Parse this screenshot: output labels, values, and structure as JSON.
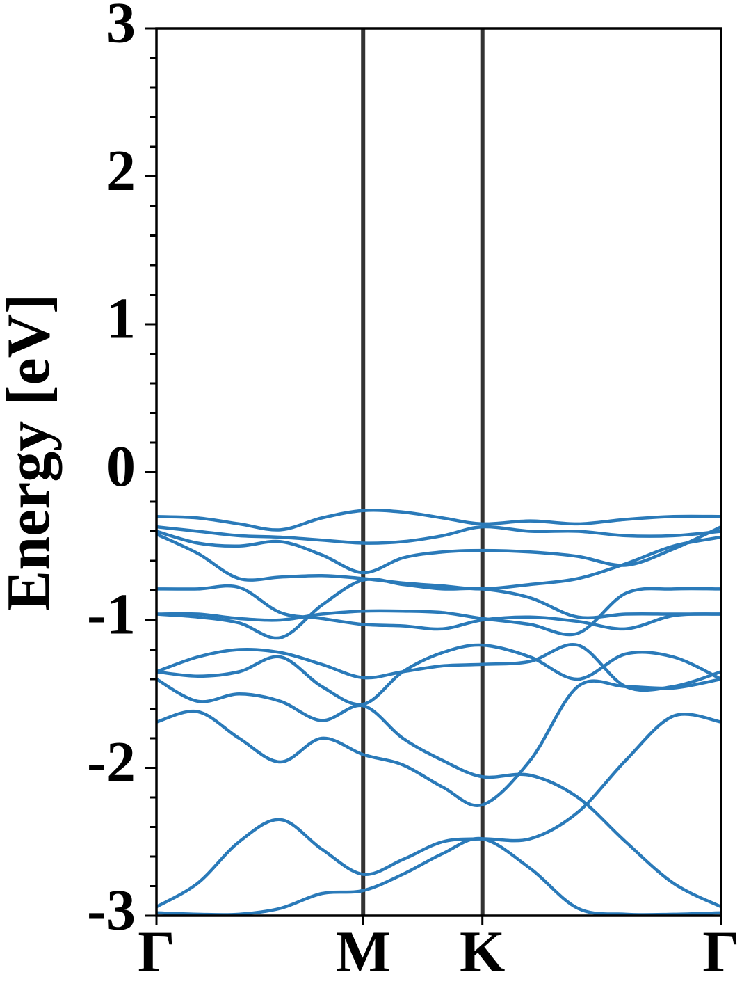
{
  "chart_data": {
    "type": "line",
    "ylabel": "Energy [eV]",
    "x": [
      0,
      0.2,
      0.4,
      0.6,
      0.8,
      1.0,
      1.192,
      1.385,
      1.577,
      1.808,
      2.039,
      2.27,
      2.501,
      2.732
    ],
    "xlim": [
      0,
      2.732
    ],
    "xticks": [
      {
        "value": 0,
        "label": "Γ"
      },
      {
        "value": 1.0,
        "label": "M"
      },
      {
        "value": 1.577,
        "label": "K"
      },
      {
        "value": 2.732,
        "label": "Γ"
      }
    ],
    "ylim": [
      -3,
      3
    ],
    "yticks": [
      3,
      2,
      1,
      0,
      -1,
      -2,
      -3
    ],
    "yminorticks": [
      2.8,
      2.6,
      2.4,
      2.2,
      1.8,
      1.6,
      1.4,
      1.2,
      0.8,
      0.6,
      0.4,
      0.2,
      -0.2,
      -0.4,
      -0.6,
      -0.8,
      -1.2,
      -1.4,
      -1.6,
      -1.8,
      -2.2,
      -2.4,
      -2.6,
      -2.8
    ],
    "vertical_lines": true,
    "color": "#2a7ab9",
    "series": [
      {
        "values": [
          -0.3,
          -0.31,
          -0.35,
          -0.39,
          -0.31,
          -0.26,
          -0.27,
          -0.31,
          -0.35,
          -0.33,
          -0.35,
          -0.32,
          -0.3,
          -0.3
        ]
      },
      {
        "values": [
          -0.37,
          -0.4,
          -0.43,
          -0.44,
          -0.46,
          -0.48,
          -0.47,
          -0.43,
          -0.37,
          -0.4,
          -0.4,
          -0.43,
          -0.43,
          -0.4
        ]
      },
      {
        "values": [
          -0.4,
          -0.48,
          -0.5,
          -0.47,
          -0.56,
          -0.68,
          -0.58,
          -0.54,
          -0.53,
          -0.54,
          -0.57,
          -0.63,
          -0.52,
          -0.37
        ]
      },
      {
        "values": [
          -0.42,
          -0.55,
          -0.72,
          -0.71,
          -0.7,
          -0.72,
          -0.75,
          -0.77,
          -0.79,
          -0.76,
          -0.72,
          -0.62,
          -0.5,
          -0.44
        ]
      },
      {
        "values": [
          -0.79,
          -0.79,
          -0.78,
          -0.95,
          -0.99,
          -1.03,
          -1.04,
          -1.06,
          -1.0,
          -0.98,
          -1.01,
          -1.06,
          -0.97,
          -0.96
        ]
      },
      {
        "values": [
          -0.96,
          -0.96,
          -0.99,
          -1.0,
          -0.96,
          -0.94,
          -0.94,
          -0.95,
          -0.99,
          -1.03,
          -1.09,
          -0.82,
          -0.79,
          -0.79
        ]
      },
      {
        "values": [
          -0.96,
          -0.98,
          -1.02,
          -1.12,
          -0.9,
          -0.73,
          -0.76,
          -0.79,
          -0.79,
          -0.85,
          -0.98,
          -0.96,
          -0.96,
          -0.96
        ]
      },
      {
        "values": [
          -1.35,
          -1.25,
          -1.2,
          -1.22,
          -1.3,
          -1.39,
          -1.35,
          -1.31,
          -1.3,
          -1.28,
          -1.17,
          -1.45,
          -1.45,
          -1.35
        ]
      },
      {
        "values": [
          -1.35,
          -1.38,
          -1.35,
          -1.25,
          -1.45,
          -1.57,
          -1.35,
          -1.22,
          -1.17,
          -1.25,
          -1.4,
          -1.23,
          -1.25,
          -1.4
        ]
      },
      {
        "values": [
          -1.4,
          -1.55,
          -1.5,
          -1.55,
          -1.68,
          -1.58,
          -1.8,
          -1.95,
          -2.06,
          -2.05,
          -2.2,
          -2.5,
          -2.78,
          -2.94
        ]
      },
      {
        "values": [
          -1.69,
          -1.62,
          -1.8,
          -1.96,
          -1.8,
          -1.91,
          -1.98,
          -2.13,
          -2.25,
          -1.95,
          -1.45,
          -1.45,
          -1.46,
          -1.4
        ]
      },
      {
        "values": [
          -2.94,
          -2.78,
          -2.5,
          -2.35,
          -2.55,
          -2.72,
          -2.62,
          -2.5,
          -2.48,
          -2.48,
          -2.3,
          -1.95,
          -1.65,
          -1.69
        ]
      },
      {
        "values": [
          -2.98,
          -2.99,
          -2.99,
          -2.95,
          -2.85,
          -2.83,
          -2.72,
          -2.58,
          -2.48,
          -2.68,
          -2.95,
          -2.99,
          -2.99,
          -2.98
        ]
      }
    ]
  }
}
